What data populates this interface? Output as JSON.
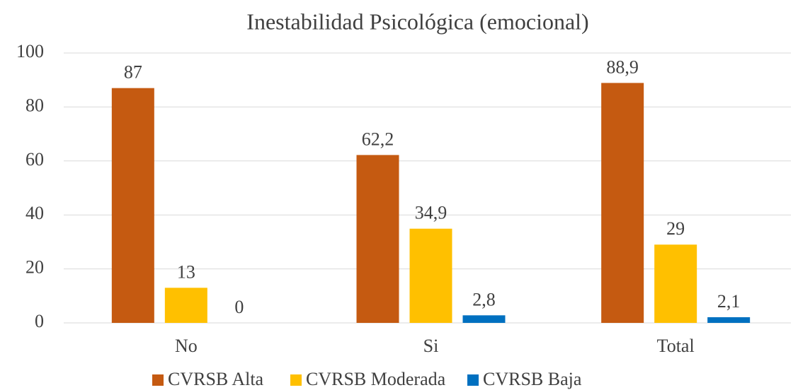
{
  "chart_data": {
    "type": "bar",
    "title": "Inestabilidad Psicológica (emocional)",
    "categories": [
      "No",
      "Si",
      "Total"
    ],
    "series": [
      {
        "name": "CVRSB Alta",
        "color": "#c55a11",
        "values": [
          87,
          62.2,
          88.9
        ],
        "value_labels": [
          "87",
          "62,2",
          "88,9"
        ]
      },
      {
        "name": "CVRSB Moderada",
        "color": "#ffc000",
        "values": [
          13,
          34.9,
          29
        ],
        "value_labels": [
          "13",
          "34,9",
          "29"
        ]
      },
      {
        "name": "CVRSB Baja",
        "color": "#0070c0",
        "values": [
          0,
          2.8,
          2.1
        ],
        "value_labels": [
          "0",
          "2,8",
          "2,1"
        ]
      }
    ],
    "ylim": [
      0,
      100
    ],
    "yticks": [
      0,
      20,
      40,
      60,
      80,
      100
    ],
    "grid": true,
    "legend": "bottom"
  }
}
